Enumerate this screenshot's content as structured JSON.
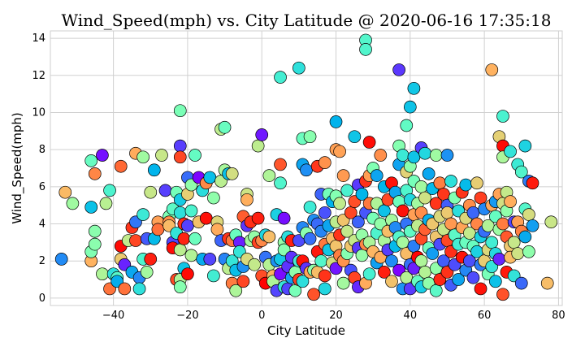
{
  "chart_data": {
    "type": "scatter",
    "title": "Wind_Speed(mph) vs. City Latitude @ 2020-06-16 17:35:18",
    "xlabel": "City Latitude",
    "ylabel": "Wind_Speed(mph)",
    "xlim": [
      -57,
      81
    ],
    "ylim": [
      -0.4,
      14.4
    ],
    "xticks": [
      -40,
      -20,
      0,
      20,
      40,
      60,
      80
    ],
    "yticks": [
      0,
      2,
      4,
      6,
      8,
      10,
      12,
      14
    ],
    "grid": true,
    "colormap": "rainbow",
    "edge_color": "#000000",
    "points": [
      [
        -54,
        2.1
      ],
      [
        -53,
        5.7
      ],
      [
        -51,
        5.1
      ],
      [
        -46,
        7.4
      ],
      [
        -46,
        4.9
      ],
      [
        -45,
        6.7
      ],
      [
        -46,
        2.0
      ],
      [
        -46,
        2.5
      ],
      [
        -45,
        3.6
      ],
      [
        -45,
        2.9
      ],
      [
        -43,
        7.7
      ],
      [
        -43,
        1.3
      ],
      [
        -42,
        5.1
      ],
      [
        -41,
        5.8
      ],
      [
        -41,
        0.5
      ],
      [
        -40,
        1.3
      ],
      [
        -39,
        1.1
      ],
      [
        -39,
        0.9
      ],
      [
        -38,
        2.8
      ],
      [
        -38,
        2.1
      ],
      [
        -38,
        7.1
      ],
      [
        -37,
        0.5
      ],
      [
        -37,
        1.8
      ],
      [
        -36,
        3.1
      ],
      [
        -35,
        3.8
      ],
      [
        -35,
        1.4
      ],
      [
        -34,
        7.8
      ],
      [
        -34,
        4.1
      ],
      [
        -34,
        3.1
      ],
      [
        -33,
        1.1
      ],
      [
        -33,
        0.5
      ],
      [
        -32,
        7.6
      ],
      [
        -32,
        4.5
      ],
      [
        -32,
        2.1
      ],
      [
        -31,
        1.4
      ],
      [
        -31,
        3.2
      ],
      [
        -30,
        5.7
      ],
      [
        -30,
        2.1
      ],
      [
        -29,
        6.9
      ],
      [
        -29,
        3.2
      ],
      [
        -28,
        4.1
      ],
      [
        -28,
        3.7
      ],
      [
        -27,
        7.7
      ],
      [
        -26,
        5.8
      ],
      [
        -25,
        4.4
      ],
      [
        -25,
        4.1
      ],
      [
        -25,
        3.9
      ],
      [
        -24,
        3.0
      ],
      [
        -24,
        4.8
      ],
      [
        -24,
        2.7
      ],
      [
        -23,
        1.0
      ],
      [
        -23,
        5.7
      ],
      [
        -23,
        3.5
      ],
      [
        -22,
        10.1
      ],
      [
        -22,
        8.2
      ],
      [
        -22,
        7.6
      ],
      [
        -22,
        5.3
      ],
      [
        -22,
        4.6
      ],
      [
        -22,
        2.6
      ],
      [
        -22,
        1.0
      ],
      [
        -22,
        0.6
      ],
      [
        -21,
        1.6
      ],
      [
        -21,
        4.0
      ],
      [
        -21,
        3.2
      ],
      [
        -20,
        6.5
      ],
      [
        -20,
        5.6
      ],
      [
        -20,
        3.9
      ],
      [
        -20,
        1.3
      ],
      [
        -19,
        6.1
      ],
      [
        -19,
        4.7
      ],
      [
        -19,
        2.3
      ],
      [
        -18,
        7.7
      ],
      [
        -18,
        3.2
      ],
      [
        -17,
        6.5
      ],
      [
        -17,
        4.1
      ],
      [
        -16,
        5.8
      ],
      [
        -16,
        2.1
      ],
      [
        -15,
        6.2
      ],
      [
        -15,
        4.3
      ],
      [
        -14,
        6.5
      ],
      [
        -14,
        2.1
      ],
      [
        -13,
        5.4
      ],
      [
        -13,
        1.2
      ],
      [
        -12,
        4.1
      ],
      [
        -12,
        3.7
      ],
      [
        -11,
        9.1
      ],
      [
        -11,
        6.3
      ],
      [
        -11,
        3.1
      ],
      [
        -10,
        9.2
      ],
      [
        -10,
        6.9
      ],
      [
        -10,
        2.1
      ],
      [
        -9,
        6.7
      ],
      [
        -9,
        3.2
      ],
      [
        -9,
        1.6
      ],
      [
        -8,
        6.7
      ],
      [
        -8,
        3.1
      ],
      [
        -8,
        2.0
      ],
      [
        -8,
        0.8
      ],
      [
        -7,
        3.4
      ],
      [
        -7,
        1.5
      ],
      [
        -7,
        0.4
      ],
      [
        -6,
        3.0
      ],
      [
        -6,
        2.5
      ],
      [
        -5,
        4.4
      ],
      [
        -5,
        1.7
      ],
      [
        -5,
        0.9
      ],
      [
        -4,
        5.6
      ],
      [
        -4,
        5.3
      ],
      [
        -4,
        3.9
      ],
      [
        -4,
        2.1
      ],
      [
        -3,
        4.1
      ],
      [
        -3,
        3.1
      ],
      [
        -2,
        3.3
      ],
      [
        -2,
        1.8
      ],
      [
        -1,
        8.2
      ],
      [
        -1,
        4.3
      ],
      [
        -1,
        3.0
      ],
      [
        0,
        8.8
      ],
      [
        0,
        3.1
      ],
      [
        0,
        1.2
      ],
      [
        1,
        3.4
      ],
      [
        1,
        2.2
      ],
      [
        1,
        0.8
      ],
      [
        2,
        6.6
      ],
      [
        2,
        3.3
      ],
      [
        2,
        1.8
      ],
      [
        3,
        1.2
      ],
      [
        3,
        0.9
      ],
      [
        4,
        4.5
      ],
      [
        4,
        2.0
      ],
      [
        4,
        0.4
      ],
      [
        5,
        11.9
      ],
      [
        5,
        7.2
      ],
      [
        5,
        6.2
      ],
      [
        5,
        2.1
      ],
      [
        5,
        1.3
      ],
      [
        6,
        4.3
      ],
      [
        6,
        3.0
      ],
      [
        6,
        2.6
      ],
      [
        6,
        0.6
      ],
      [
        7,
        3.3
      ],
      [
        7,
        1.7
      ],
      [
        7,
        0.5
      ],
      [
        8,
        3.1
      ],
      [
        8,
        2.2
      ],
      [
        8,
        1.1
      ],
      [
        9,
        1.4
      ],
      [
        9,
        0.4
      ],
      [
        10,
        12.4
      ],
      [
        10,
        3.1
      ],
      [
        10,
        2.0
      ],
      [
        10,
        1.0
      ],
      [
        11,
        8.6
      ],
      [
        11,
        7.2
      ],
      [
        11,
        3.8
      ],
      [
        11,
        2.0
      ],
      [
        11,
        0.9
      ],
      [
        12,
        6.9
      ],
      [
        12,
        3.5
      ],
      [
        12,
        1.6
      ],
      [
        13,
        8.7
      ],
      [
        13,
        4.9
      ],
      [
        13,
        3.2
      ],
      [
        13,
        1.4
      ],
      [
        14,
        4.2
      ],
      [
        14,
        1.5
      ],
      [
        14,
        0.2
      ],
      [
        15,
        7.1
      ],
      [
        15,
        4.0
      ],
      [
        15,
        2.5
      ],
      [
        15,
        1.4
      ],
      [
        16,
        5.6
      ],
      [
        16,
        3.6
      ],
      [
        16,
        2.0
      ],
      [
        17,
        7.3
      ],
      [
        17,
        4.6
      ],
      [
        17,
        2.9
      ],
      [
        17,
        1.2
      ],
      [
        17,
        0.5
      ],
      [
        18,
        5.6
      ],
      [
        18,
        3.9
      ],
      [
        18,
        2.6
      ],
      [
        19,
        5.2
      ],
      [
        19,
        3.2
      ],
      [
        19,
        1.9
      ],
      [
        20,
        9.5
      ],
      [
        20,
        8.0
      ],
      [
        20,
        5.5
      ],
      [
        20,
        4.1
      ],
      [
        20,
        2.8
      ],
      [
        20,
        1.6
      ],
      [
        21,
        7.9
      ],
      [
        21,
        5.1
      ],
      [
        21,
        3.4
      ],
      [
        21,
        2.3
      ],
      [
        22,
        6.6
      ],
      [
        22,
        4.2
      ],
      [
        22,
        2.0
      ],
      [
        22,
        0.8
      ],
      [
        23,
        5.8
      ],
      [
        23,
        3.6
      ],
      [
        23,
        2.4
      ],
      [
        24,
        4.6
      ],
      [
        24,
        2.8
      ],
      [
        24,
        1.5
      ],
      [
        25,
        8.7
      ],
      [
        25,
        5.2
      ],
      [
        25,
        3.1
      ],
      [
        25,
        1.1
      ],
      [
        26,
        6.1
      ],
      [
        26,
        4.1
      ],
      [
        26,
        2.7
      ],
      [
        26,
        0.6
      ],
      [
        27,
        5.6
      ],
      [
        27,
        3.4
      ],
      [
        27,
        2.3
      ],
      [
        28,
        13.9
      ],
      [
        28,
        13.4
      ],
      [
        28,
        6.3
      ],
      [
        28,
        4.6
      ],
      [
        28,
        2.9
      ],
      [
        28,
        0.8
      ],
      [
        29,
        8.4
      ],
      [
        29,
        6.6
      ],
      [
        29,
        5.1
      ],
      [
        29,
        3.0
      ],
      [
        29,
        1.3
      ],
      [
        30,
        7.0
      ],
      [
        30,
        4.3
      ],
      [
        30,
        2.5
      ],
      [
        31,
        6.6
      ],
      [
        31,
        5.1
      ],
      [
        31,
        3.5
      ],
      [
        31,
        1.9
      ],
      [
        32,
        7.7
      ],
      [
        32,
        4.0
      ],
      [
        32,
        2.2
      ],
      [
        33,
        6.0
      ],
      [
        33,
        4.7
      ],
      [
        33,
        3.1
      ],
      [
        33,
        1.4
      ],
      [
        34,
        5.3
      ],
      [
        34,
        3.6
      ],
      [
        34,
        2.6
      ],
      [
        35,
        6.2
      ],
      [
        35,
        4.2
      ],
      [
        35,
        2.0
      ],
      [
        35,
        0.9
      ],
      [
        36,
        5.7
      ],
      [
        36,
        3.8
      ],
      [
        36,
        2.8
      ],
      [
        37,
        12.3
      ],
      [
        37,
        8.2
      ],
      [
        37,
        7.2
      ],
      [
        37,
        5.2
      ],
      [
        37,
        3.3
      ],
      [
        37,
        1.5
      ],
      [
        38,
        7.7
      ],
      [
        38,
        4.7
      ],
      [
        38,
        3.0
      ],
      [
        38,
        0.5
      ],
      [
        39,
        9.3
      ],
      [
        39,
        6.8
      ],
      [
        39,
        5.8
      ],
      [
        39,
        4.0
      ],
      [
        39,
        2.4
      ],
      [
        39,
        1.1
      ],
      [
        40,
        10.3
      ],
      [
        40,
        7.1
      ],
      [
        40,
        5.3
      ],
      [
        40,
        3.6
      ],
      [
        40,
        1.8
      ],
      [
        40,
        0.5
      ],
      [
        41,
        11.3
      ],
      [
        41,
        7.6
      ],
      [
        41,
        6.3
      ],
      [
        41,
        4.5
      ],
      [
        41,
        2.8
      ],
      [
        41,
        1.6
      ],
      [
        42,
        5.1
      ],
      [
        42,
        3.9
      ],
      [
        42,
        2.2
      ],
      [
        42,
        0.9
      ],
      [
        43,
        8.1
      ],
      [
        43,
        6.0
      ],
      [
        43,
        4.6
      ],
      [
        43,
        3.2
      ],
      [
        43,
        2.0
      ],
      [
        43,
        0.6
      ],
      [
        44,
        7.8
      ],
      [
        44,
        5.4
      ],
      [
        44,
        3.7
      ],
      [
        44,
        1.4
      ],
      [
        45,
        6.7
      ],
      [
        45,
        4.2
      ],
      [
        45,
        2.7
      ],
      [
        45,
        0.8
      ],
      [
        46,
        5.9
      ],
      [
        46,
        4.0
      ],
      [
        46,
        2.4
      ],
      [
        47,
        7.7
      ],
      [
        47,
        5.1
      ],
      [
        47,
        3.3
      ],
      [
        47,
        1.6
      ],
      [
        47,
        0.4
      ],
      [
        48,
        6.2
      ],
      [
        48,
        4.4
      ],
      [
        48,
        2.9
      ],
      [
        48,
        1.0
      ],
      [
        49,
        5.6
      ],
      [
        49,
        3.7
      ],
      [
        49,
        2.0
      ],
      [
        50,
        7.7
      ],
      [
        50,
        5.0
      ],
      [
        50,
        4.6
      ],
      [
        50,
        3.1
      ],
      [
        50,
        1.4
      ],
      [
        51,
        6.3
      ],
      [
        51,
        4.0
      ],
      [
        51,
        2.5
      ],
      [
        51,
        0.7
      ],
      [
        52,
        5.4
      ],
      [
        52,
        3.4
      ],
      [
        52,
        1.8
      ],
      [
        53,
        4.7
      ],
      [
        53,
        2.9
      ],
      [
        53,
        1.0
      ],
      [
        54,
        5.7
      ],
      [
        54,
        3.8
      ],
      [
        54,
        2.2
      ],
      [
        55,
        6.1
      ],
      [
        55,
        4.3
      ],
      [
        55,
        3.0
      ],
      [
        55,
        1.5
      ],
      [
        56,
        5.0
      ],
      [
        56,
        3.5
      ],
      [
        56,
        2.0
      ],
      [
        57,
        4.6
      ],
      [
        57,
        2.8
      ],
      [
        57,
        1.1
      ],
      [
        58,
        6.2
      ],
      [
        58,
        4.0
      ],
      [
        58,
        2.5
      ],
      [
        59,
        5.4
      ],
      [
        59,
        3.3
      ],
      [
        59,
        1.8
      ],
      [
        59,
        0.5
      ],
      [
        60,
        4.8
      ],
      [
        60,
        3.6
      ],
      [
        60,
        2.0
      ],
      [
        61,
        3.9
      ],
      [
        61,
        2.6
      ],
      [
        61,
        1.3
      ],
      [
        62,
        12.3
      ],
      [
        62,
        5.0
      ],
      [
        62,
        3.0
      ],
      [
        62,
        1.7
      ],
      [
        63,
        5.2
      ],
      [
        63,
        4.4
      ],
      [
        63,
        2.4
      ],
      [
        63,
        0.9
      ],
      [
        64,
        8.7
      ],
      [
        64,
        5.6
      ],
      [
        64,
        3.7
      ],
      [
        64,
        2.1
      ],
      [
        65,
        9.8
      ],
      [
        65,
        8.2
      ],
      [
        65,
        7.6
      ],
      [
        65,
        5.1
      ],
      [
        65,
        4.0
      ],
      [
        65,
        0.2
      ],
      [
        66,
        5.7
      ],
      [
        66,
        4.7
      ],
      [
        66,
        3.3
      ],
      [
        66,
        1.4
      ],
      [
        67,
        7.9
      ],
      [
        67,
        5.2
      ],
      [
        67,
        2.8
      ],
      [
        67,
        2.2
      ],
      [
        68,
        4.1
      ],
      [
        68,
        3.0
      ],
      [
        68,
        1.2
      ],
      [
        69,
        7.2
      ],
      [
        69,
        4.1
      ],
      [
        69,
        2.4
      ],
      [
        70,
        6.8
      ],
      [
        70,
        3.6
      ],
      [
        70,
        0.8
      ],
      [
        71,
        8.2
      ],
      [
        71,
        4.8
      ],
      [
        71,
        3.3
      ],
      [
        72,
        6.3
      ],
      [
        72,
        4.5
      ],
      [
        72,
        2.5
      ],
      [
        73,
        6.2
      ],
      [
        73,
        3.9
      ],
      [
        77,
        0.8
      ],
      [
        78,
        4.1
      ]
    ]
  }
}
